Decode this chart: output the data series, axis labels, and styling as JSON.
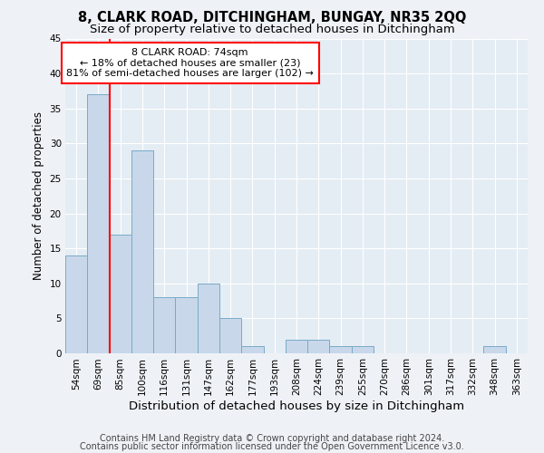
{
  "title1": "8, CLARK ROAD, DITCHINGHAM, BUNGAY, NR35 2QQ",
  "title2": "Size of property relative to detached houses in Ditchingham",
  "xlabel": "Distribution of detached houses by size in Ditchingham",
  "ylabel": "Number of detached properties",
  "categories": [
    "54sqm",
    "69sqm",
    "85sqm",
    "100sqm",
    "116sqm",
    "131sqm",
    "147sqm",
    "162sqm",
    "177sqm",
    "193sqm",
    "208sqm",
    "224sqm",
    "239sqm",
    "255sqm",
    "270sqm",
    "286sqm",
    "301sqm",
    "317sqm",
    "332sqm",
    "348sqm",
    "363sqm"
  ],
  "values": [
    14,
    37,
    17,
    29,
    8,
    8,
    10,
    5,
    1,
    0,
    2,
    2,
    1,
    1,
    0,
    0,
    0,
    0,
    0,
    1,
    0
  ],
  "bar_color": "#c8d8ea",
  "bar_edge_color": "#7aaac8",
  "red_line_x": 1.5,
  "annotation_text": "8 CLARK ROAD: 74sqm\n← 18% of detached houses are smaller (23)\n81% of semi-detached houses are larger (102) →",
  "annotation_box_color": "white",
  "annotation_box_edge": "red",
  "ylim": [
    0,
    45
  ],
  "yticks": [
    0,
    5,
    10,
    15,
    20,
    25,
    30,
    35,
    40,
    45
  ],
  "footer1": "Contains HM Land Registry data © Crown copyright and database right 2024.",
  "footer2": "Contains public sector information licensed under the Open Government Licence v3.0.",
  "bg_color": "#eef2f7",
  "plot_bg_color": "#e4ecf4",
  "grid_color": "white",
  "title1_fontsize": 10.5,
  "title2_fontsize": 9.5,
  "tick_fontsize": 7.5,
  "xlabel_fontsize": 9.5,
  "ylabel_fontsize": 8.5,
  "footer_fontsize": 7
}
